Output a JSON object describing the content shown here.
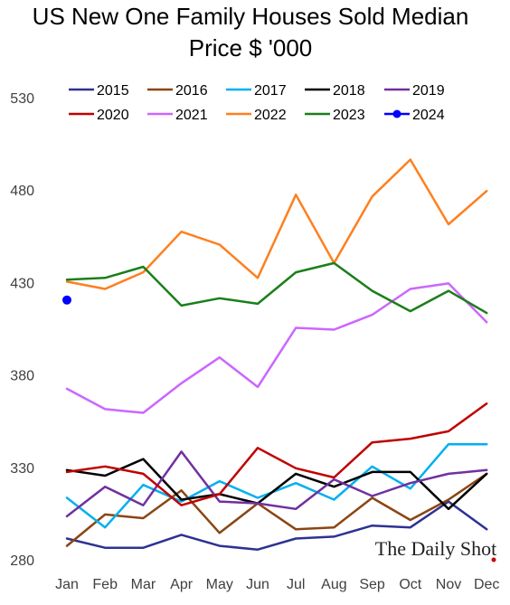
{
  "chart_data": {
    "type": "line",
    "title_line1": "US New One Family Houses Sold Median",
    "title_line2": "Price $ '000",
    "xlabel": "",
    "ylabel": "",
    "categories": [
      "Jan",
      "Feb",
      "Mar",
      "Apr",
      "May",
      "Jun",
      "Jul",
      "Aug",
      "Sep",
      "Oct",
      "Nov",
      "Dec"
    ],
    "ylim": [
      280,
      530
    ],
    "yticks": [
      280,
      330,
      380,
      430,
      480,
      530
    ],
    "grid": false,
    "legend_position": "top",
    "series": [
      {
        "name": "2015",
        "color": "#2e3192",
        "values": [
          292,
          287,
          287,
          294,
          288,
          286,
          292,
          293,
          299,
          298,
          312,
          297
        ]
      },
      {
        "name": "2016",
        "color": "#8b4513",
        "values": [
          288,
          305,
          303,
          318,
          295,
          311,
          297,
          298,
          314,
          302,
          313,
          327
        ]
      },
      {
        "name": "2017",
        "color": "#00b0f0",
        "values": [
          314,
          298,
          321,
          312,
          323,
          314,
          322,
          313,
          331,
          319,
          343,
          343
        ]
      },
      {
        "name": "2018",
        "color": "#000000",
        "values": [
          329,
          326,
          335,
          313,
          316,
          311,
          327,
          320,
          328,
          328,
          308,
          327
        ]
      },
      {
        "name": "2019",
        "color": "#7030a0",
        "values": [
          304,
          320,
          310,
          339,
          312,
          311,
          308,
          324,
          315,
          322,
          327,
          329
        ]
      },
      {
        "name": "2020",
        "color": "#c00000",
        "values": [
          328,
          331,
          327,
          310,
          316,
          341,
          330,
          325,
          344,
          346,
          350,
          365
        ]
      },
      {
        "name": "2021",
        "color": "#cc66ff",
        "values": [
          373,
          362,
          360,
          376,
          390,
          374,
          406,
          405,
          413,
          427,
          430,
          409
        ]
      },
      {
        "name": "2022",
        "color": "#ff7f1e",
        "values": [
          431,
          427,
          436,
          458,
          451,
          433,
          478,
          441,
          477,
          497,
          462,
          480
        ]
      },
      {
        "name": "2023",
        "color": "#1a7f1a",
        "values": [
          432,
          433,
          439,
          418,
          422,
          419,
          436,
          441,
          426,
          415,
          426,
          414
        ]
      },
      {
        "name": "2024",
        "color": "#0000ff",
        "values": [
          421,
          null,
          null,
          null,
          null,
          null,
          null,
          null,
          null,
          null,
          null,
          null
        ]
      }
    ]
  },
  "watermark": "The Daily Shot",
  "watermark_dot_color": "#cc0000"
}
